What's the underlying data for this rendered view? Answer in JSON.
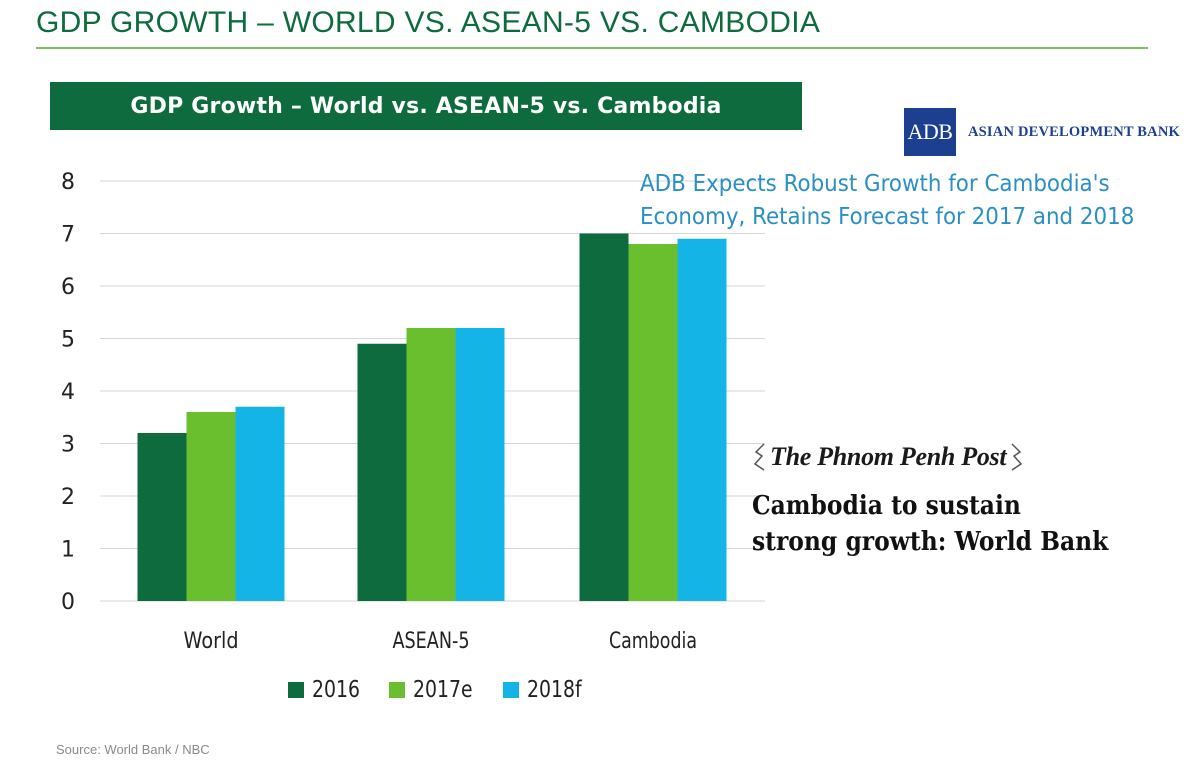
{
  "slide": {
    "title": "GDP GROWTH – WORLD VS. ASEAN-5 VS. CAMBODIA",
    "source": "Source: World Bank / NBC"
  },
  "colors": {
    "brand_green": "#0e6b3d",
    "rule_green": "#7bbf5e",
    "series_2016": "#0e6b3d",
    "series_2017e": "#6abf2e",
    "series_2018f": "#14b4e6",
    "adb_blue": "#1d3f8f",
    "adb_headline": "#2a8fc4"
  },
  "chart_data": {
    "type": "bar",
    "title": "GDP Growth – World vs. ASEAN-5 vs. Cambodia",
    "xlabel": "",
    "ylabel": "",
    "categories": [
      "World",
      "ASEAN-5",
      "Cambodia"
    ],
    "series": [
      {
        "name": "2016",
        "values": [
          3.2,
          4.9,
          7.0
        ],
        "color": "#0e6b3d"
      },
      {
        "name": "2017e",
        "values": [
          3.6,
          5.2,
          6.8
        ],
        "color": "#6abf2e"
      },
      {
        "name": "2018f",
        "values": [
          3.7,
          5.2,
          6.9
        ],
        "color": "#14b4e6"
      }
    ],
    "ylim": [
      0,
      8
    ],
    "yticks": [
      "0",
      "1",
      "2",
      "3",
      "4",
      "5",
      "6",
      "7",
      "8"
    ],
    "grid": true,
    "legend_position": "bottom"
  },
  "adb": {
    "logo_text": "ADB",
    "name": "ASIAN DEVELOPMENT BANK",
    "headline_line1": "ADB Expects Robust Growth for Cambodia's",
    "headline_line2": "Economy, Retains Forecast for 2017 and 2018"
  },
  "ppp": {
    "name": "The Phnom Penh Post",
    "headline_line1": "Cambodia to sustain",
    "headline_line2": "strong growth: World Bank"
  }
}
